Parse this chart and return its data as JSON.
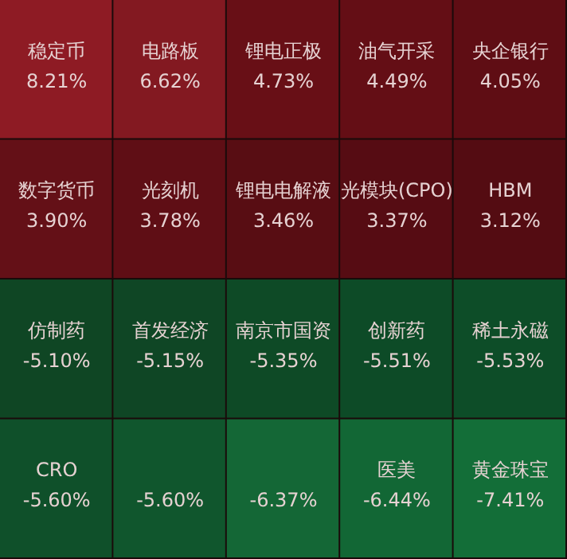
{
  "chart_data": {
    "type": "other",
    "categories": [
      "稳定币",
      "电路板",
      "锂电正极",
      "油气开采",
      "央企银行",
      "数字货币",
      "光刻机",
      "锂电电解液",
      "光模块(CPO)",
      "HBM",
      "仿制药",
      "首发经济",
      "南京市国资",
      "创新药",
      "稀土永磁",
      "CRO",
      null,
      null,
      "医美",
      "黄金珠宝"
    ],
    "values": [
      8.21,
      6.62,
      4.73,
      4.49,
      4.05,
      3.9,
      3.78,
      3.46,
      3.37,
      3.12,
      -5.1,
      -5.15,
      -5.35,
      -5.51,
      -5.53,
      -5.6,
      -5.6,
      -6.37,
      -6.44,
      -7.41
    ],
    "value_labels": [
      "8.21%",
      "6.62%",
      "4.73%",
      "4.49%",
      "4.05%",
      "3.90%",
      "3.78%",
      "3.46%",
      "3.37%",
      "3.12%",
      "-5.10%",
      "-5.15%",
      "-5.35%",
      "-5.51%",
      "-5.53%",
      "-5.60%",
      "-5.60%",
      "-6.37%",
      "-6.44%",
      "-7.41%"
    ],
    "colors": [
      "#8e1b24",
      "#871a22",
      "#6e1018",
      "#6a0f17",
      "#650e16",
      "#6a1119",
      "#650f17",
      "#5e0e15",
      "#5c0d15",
      "#5a0d14",
      "#0f4a26",
      "#0f4a27",
      "#0e4e28",
      "#0d4f29",
      "#0d512a",
      "#0f542c",
      "#105a2f",
      "#146b38",
      "#136a37",
      "#137039"
    ]
  }
}
